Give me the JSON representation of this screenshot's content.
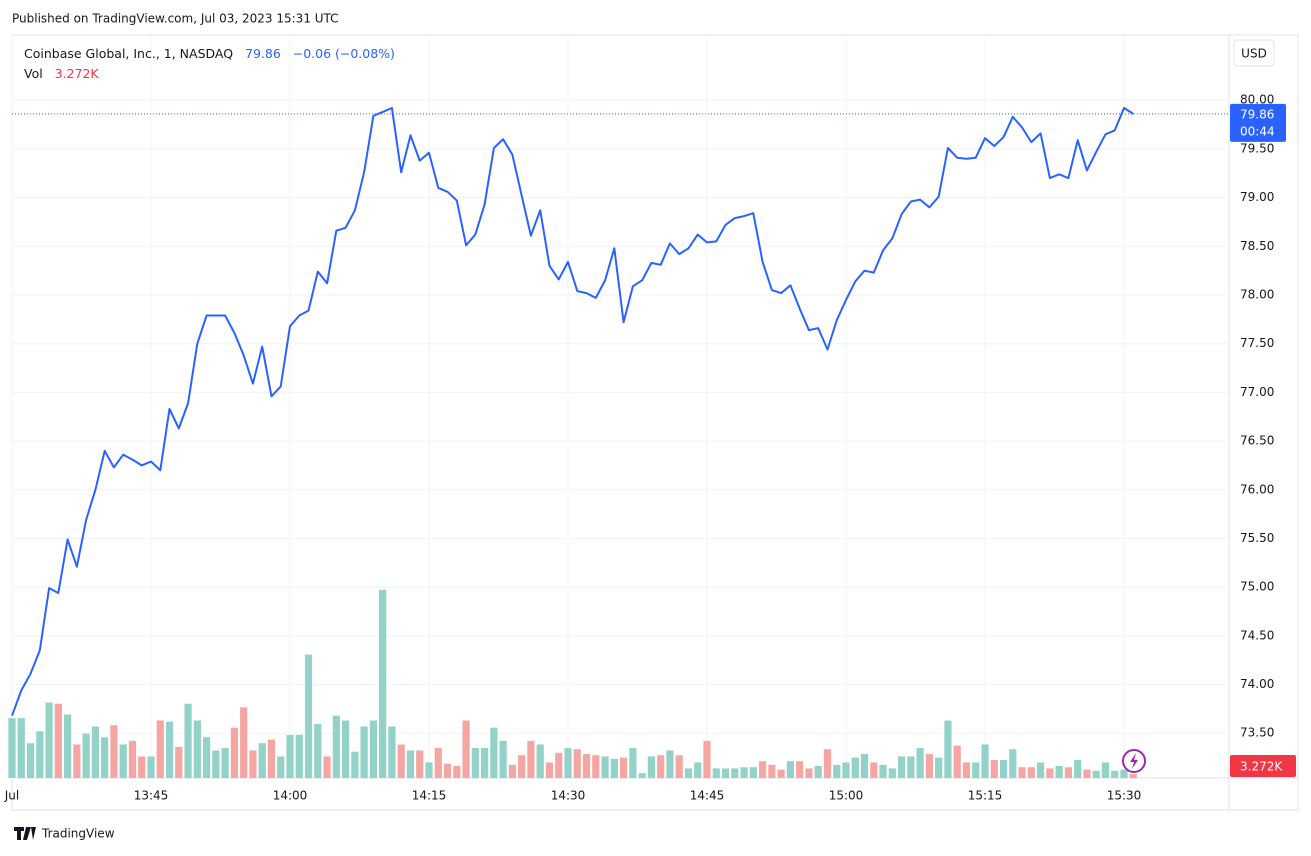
{
  "header": {
    "published": "Published on TradingView.com, Jul 03, 2023 15:31 UTC",
    "currency": "USD",
    "brand": "TradingView"
  },
  "chart_data": {
    "type": "line",
    "title": "Coinbase Global, Inc., 1, NASDAQ",
    "change": "−0.06 (−0.08%)",
    "countdown": "00:44",
    "categories": [
      "Jul",
      null,
      null,
      null,
      null,
      null,
      null,
      null,
      null,
      null,
      null,
      null,
      null,
      null,
      null,
      "13:45",
      null,
      null,
      null,
      null,
      null,
      null,
      null,
      null,
      null,
      null,
      null,
      null,
      null,
      null,
      "14:00",
      null,
      null,
      null,
      null,
      null,
      null,
      null,
      null,
      null,
      null,
      null,
      null,
      null,
      null,
      "14:15",
      null,
      null,
      null,
      null,
      null,
      null,
      null,
      null,
      null,
      null,
      null,
      null,
      null,
      null,
      "14:30",
      null,
      null,
      null,
      null,
      null,
      null,
      null,
      null,
      null,
      null,
      null,
      null,
      null,
      null,
      "14:45",
      null,
      null,
      null,
      null,
      null,
      null,
      null,
      null,
      null,
      null,
      null,
      null,
      null,
      null,
      "15:00",
      null,
      null,
      null,
      null,
      null,
      null,
      null,
      null,
      null,
      null,
      null,
      null,
      null,
      null,
      "15:15",
      null,
      null,
      null,
      null,
      null,
      null,
      null,
      null,
      null,
      null,
      null,
      null,
      null,
      null,
      "15:30",
      null
    ],
    "series": [
      {
        "name": "Price",
        "color": "#2962ff",
        "values": [
          73.68,
          73.94,
          74.11,
          74.35,
          74.99,
          74.94,
          75.49,
          75.21,
          75.69,
          76.0,
          76.4,
          76.23,
          76.36,
          76.31,
          76.25,
          76.29,
          76.2,
          76.83,
          76.63,
          76.89,
          77.5,
          77.79,
          77.79,
          77.79,
          77.61,
          77.38,
          77.09,
          77.47,
          76.96,
          77.06,
          77.68,
          77.79,
          77.84,
          78.24,
          78.12,
          78.66,
          78.69,
          78.87,
          79.26,
          79.84,
          79.88,
          79.92,
          79.26,
          79.64,
          79.38,
          79.46,
          79.1,
          79.06,
          78.97,
          78.51,
          78.62,
          78.93,
          79.51,
          79.6,
          79.44,
          79.02,
          78.61,
          78.87,
          78.3,
          78.16,
          78.34,
          78.04,
          78.02,
          77.97,
          78.15,
          78.48,
          77.72,
          78.09,
          78.15,
          78.33,
          78.31,
          78.53,
          78.42,
          78.48,
          78.62,
          78.54,
          78.55,
          78.72,
          78.79,
          78.81,
          78.84,
          78.34,
          78.05,
          78.02,
          78.1,
          77.86,
          77.64,
          77.66,
          77.44,
          77.74,
          77.95,
          78.14,
          78.25,
          78.23,
          78.46,
          78.58,
          78.83,
          78.96,
          78.98,
          78.9,
          79.01,
          79.51,
          79.41,
          79.4,
          79.41,
          79.61,
          79.53,
          79.62,
          79.83,
          79.72,
          79.57,
          79.66,
          79.2,
          79.24,
          79.2,
          79.59,
          79.28,
          79.47,
          79.65,
          79.69,
          79.92,
          79.86
        ]
      }
    ],
    "volume": {
      "name": "Vol",
      "up_color": "#92d2c8",
      "down_color": "#f5a6a3",
      "last_label": "3.272K",
      "ylim": [
        0,
        620
      ],
      "values": [
        50,
        50,
        29,
        39,
        63,
        62,
        53,
        28,
        37,
        43,
        34,
        44,
        28,
        31,
        18,
        18,
        48,
        47,
        26,
        62,
        48,
        34,
        23,
        25,
        42,
        59,
        23,
        29,
        32,
        18,
        36,
        36,
        103,
        45,
        18,
        52,
        48,
        22,
        43,
        48,
        157,
        43,
        28,
        23,
        23,
        13,
        25,
        12,
        10,
        48,
        25,
        25,
        42,
        31,
        11,
        19,
        31,
        28,
        13,
        21,
        25,
        24,
        20,
        19,
        18,
        16,
        17,
        25,
        4,
        18,
        19,
        23,
        19,
        8,
        13,
        31,
        8,
        8,
        8,
        9,
        9,
        14,
        11,
        7,
        14,
        14,
        8,
        10,
        24,
        11,
        13,
        17,
        20,
        13,
        11,
        8,
        18,
        18,
        25,
        20,
        17,
        48,
        27,
        13,
        13,
        28,
        15,
        15,
        24,
        9,
        9,
        13,
        8,
        10,
        9,
        15,
        7,
        6,
        13,
        6,
        7,
        3.272
      ]
    },
    "ylim": [
      73.04,
      80.67
    ],
    "yticks": [
      {
        "value": 73.5,
        "label": "73.50"
      },
      {
        "value": 74,
        "label": "74.00"
      },
      {
        "value": 74.5,
        "label": "74.50"
      },
      {
        "value": 75,
        "label": "75.00"
      },
      {
        "value": 75.5,
        "label": "75.50"
      },
      {
        "value": 76,
        "label": "76.00"
      },
      {
        "value": 76.5,
        "label": "76.50"
      },
      {
        "value": 77,
        "label": "77.00"
      },
      {
        "value": 77.5,
        "label": "77.50"
      },
      {
        "value": 78,
        "label": "78.00"
      },
      {
        "value": 78.5,
        "label": "78.50"
      },
      {
        "value": 79,
        "label": "79.00"
      },
      {
        "value": 79.5,
        "label": "79.50"
      },
      {
        "value": 80,
        "label": "80.00"
      }
    ],
    "grid": true
  }
}
